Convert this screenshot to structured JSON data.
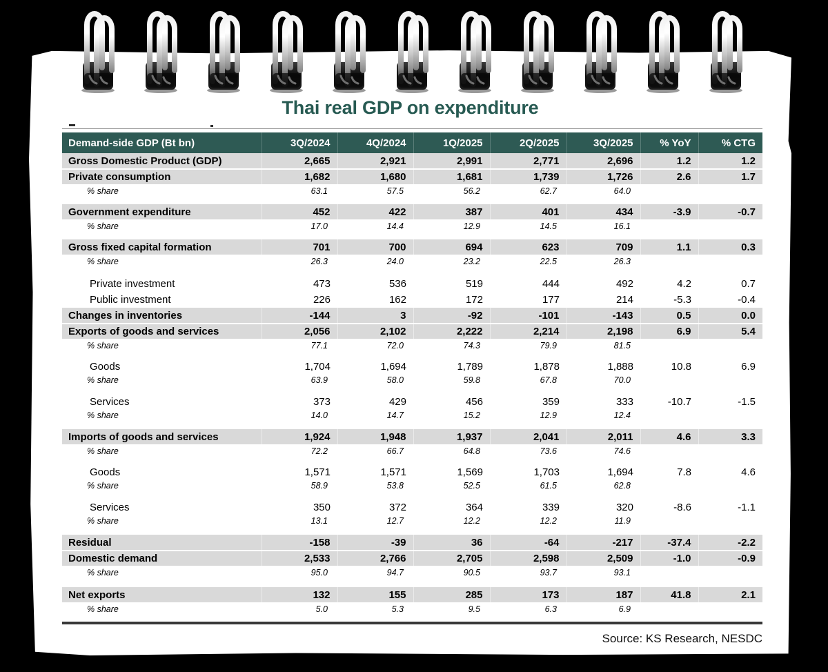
{
  "page": {
    "title": "Thai real GDP on expenditure",
    "source": "Source: KS Research, NESDC"
  },
  "colors": {
    "background": "#000000",
    "page": "#ffffff",
    "header_teal": "#2e5a54",
    "title_teal": "#275a52",
    "row_gray": "#d9d9d9"
  },
  "binding": {
    "ring_count": 11
  },
  "table": {
    "columns": [
      "Demand-side GDP (Bt bn)",
      "3Q/2024",
      "4Q/2024",
      "1Q/2025",
      "2Q/2025",
      "3Q/2025",
      "% YoY",
      "% CTG"
    ],
    "rows": [
      {
        "label": "Gross Domestic Product (GDP)",
        "style": "major",
        "values": [
          "2,665",
          "2,921",
          "2,991",
          "2,771",
          "2,696",
          "1.2",
          "1.2"
        ]
      },
      {
        "label": "Private consumption",
        "style": "major",
        "values": [
          "1,682",
          "1,680",
          "1,681",
          "1,739",
          "1,726",
          "2.6",
          "1.7"
        ]
      },
      {
        "label": "% share",
        "style": "share",
        "values": [
          "63.1",
          "57.5",
          "56.2",
          "62.7",
          "64.0",
          "",
          ""
        ]
      },
      {
        "style": "spacer"
      },
      {
        "label": "Government expenditure",
        "style": "major",
        "values": [
          "452",
          "422",
          "387",
          "401",
          "434",
          "-3.9",
          "-0.7"
        ]
      },
      {
        "label": "% share",
        "style": "share",
        "values": [
          "17.0",
          "14.4",
          "12.9",
          "14.5",
          "16.1",
          "",
          ""
        ]
      },
      {
        "style": "spacer"
      },
      {
        "label": "Gross fixed capital formation",
        "style": "major",
        "values": [
          "701",
          "700",
          "694",
          "623",
          "709",
          "1.1",
          "0.3"
        ]
      },
      {
        "label": "% share",
        "style": "share",
        "values": [
          "26.3",
          "24.0",
          "23.2",
          "22.5",
          "26.3",
          "",
          ""
        ]
      },
      {
        "style": "spacer-lg"
      },
      {
        "label": "Private investment",
        "style": "sub",
        "values": [
          "473",
          "536",
          "519",
          "444",
          "492",
          "4.2",
          "0.7"
        ]
      },
      {
        "label": "Public investment",
        "style": "sub",
        "values": [
          "226",
          "162",
          "172",
          "177",
          "214",
          "-5.3",
          "-0.4"
        ]
      },
      {
        "label": "Changes in inventories",
        "style": "major",
        "values": [
          "-144",
          "3",
          "-92",
          "-101",
          "-143",
          "0.5",
          "0.0"
        ]
      },
      {
        "label": "Exports of goods and services",
        "style": "major",
        "values": [
          "2,056",
          "2,102",
          "2,222",
          "2,214",
          "2,198",
          "6.9",
          "5.4"
        ]
      },
      {
        "label": "% share",
        "style": "share",
        "values": [
          "77.1",
          "72.0",
          "74.3",
          "79.9",
          "81.5",
          "",
          ""
        ]
      },
      {
        "style": "spacer"
      },
      {
        "label": "Goods",
        "style": "sub",
        "values": [
          "1,704",
          "1,694",
          "1,789",
          "1,878",
          "1,888",
          "10.8",
          "6.9"
        ]
      },
      {
        "label": "% share",
        "style": "share",
        "values": [
          "63.9",
          "58.0",
          "59.8",
          "67.8",
          "70.0",
          "",
          ""
        ]
      },
      {
        "style": "spacer"
      },
      {
        "label": "Services",
        "style": "sub",
        "values": [
          "373",
          "429",
          "456",
          "359",
          "333",
          "-10.7",
          "-1.5"
        ]
      },
      {
        "label": "% share",
        "style": "share",
        "values": [
          "14.0",
          "14.7",
          "15.2",
          "12.9",
          "12.4",
          "",
          ""
        ]
      },
      {
        "style": "spacer"
      },
      {
        "label": "Imports of goods and services",
        "style": "major",
        "values": [
          "1,924",
          "1,948",
          "1,937",
          "2,041",
          "2,011",
          "4.6",
          "3.3"
        ]
      },
      {
        "label": "% share",
        "style": "share",
        "values": [
          "72.2",
          "66.7",
          "64.8",
          "73.6",
          "74.6",
          "",
          ""
        ]
      },
      {
        "style": "spacer"
      },
      {
        "label": "Goods",
        "style": "sub",
        "values": [
          "1,571",
          "1,571",
          "1,569",
          "1,703",
          "1,694",
          "7.8",
          "4.6"
        ]
      },
      {
        "label": "% share",
        "style": "share",
        "values": [
          "58.9",
          "53.8",
          "52.5",
          "61.5",
          "62.8",
          "",
          ""
        ]
      },
      {
        "style": "spacer"
      },
      {
        "label": "Services",
        "style": "sub",
        "values": [
          "350",
          "372",
          "364",
          "339",
          "320",
          "-8.6",
          "-1.1"
        ]
      },
      {
        "label": "% share",
        "style": "share",
        "values": [
          "13.1",
          "12.7",
          "12.2",
          "12.2",
          "11.9",
          "",
          ""
        ]
      },
      {
        "style": "spacer"
      },
      {
        "label": "Residual",
        "style": "major",
        "values": [
          "-158",
          "-39",
          "36",
          "-64",
          "-217",
          "-37.4",
          "-2.2"
        ]
      },
      {
        "label": "Domestic demand",
        "style": "major",
        "values": [
          "2,533",
          "2,766",
          "2,705",
          "2,598",
          "2,509",
          "-1.0",
          "-0.9"
        ]
      },
      {
        "label": "% share",
        "style": "share",
        "values": [
          "95.0",
          "94.7",
          "90.5",
          "93.7",
          "93.1",
          "",
          ""
        ]
      },
      {
        "style": "spacer-lg"
      },
      {
        "label": "Net exports",
        "style": "major",
        "values": [
          "132",
          "155",
          "285",
          "173",
          "187",
          "41.8",
          "2.1"
        ]
      },
      {
        "label": "% share",
        "style": "share",
        "values": [
          "5.0",
          "5.3",
          "9.5",
          "6.3",
          "6.9",
          "",
          ""
        ]
      }
    ]
  }
}
